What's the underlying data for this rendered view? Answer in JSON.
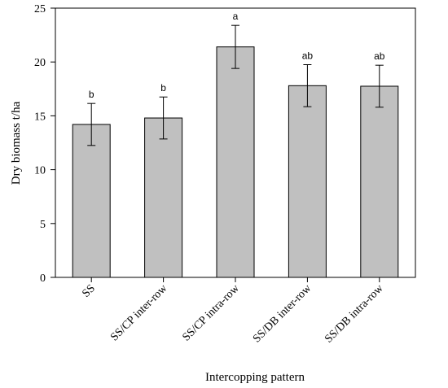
{
  "chart_data": {
    "type": "bar",
    "title": "",
    "xlabel": "Intercopping pattern",
    "ylabel": "Dry biomass t/ha",
    "ylim": [
      0,
      25
    ],
    "yticks": [
      0,
      5,
      10,
      15,
      20,
      25
    ],
    "grid": false,
    "categories": [
      "SS",
      "SS/CP inter-row",
      "SS/CP intra-row",
      "SS/DB inter-row",
      "SS/DB intra-row"
    ],
    "values": [
      14.2,
      14.8,
      21.4,
      17.8,
      17.75
    ],
    "errors": [
      1.95,
      1.95,
      2.0,
      1.95,
      1.95
    ],
    "significance_letters": [
      "b",
      "b",
      "a",
      "ab",
      "ab"
    ],
    "bar_color": "#c0c0c0",
    "edge_color": "#000000"
  }
}
